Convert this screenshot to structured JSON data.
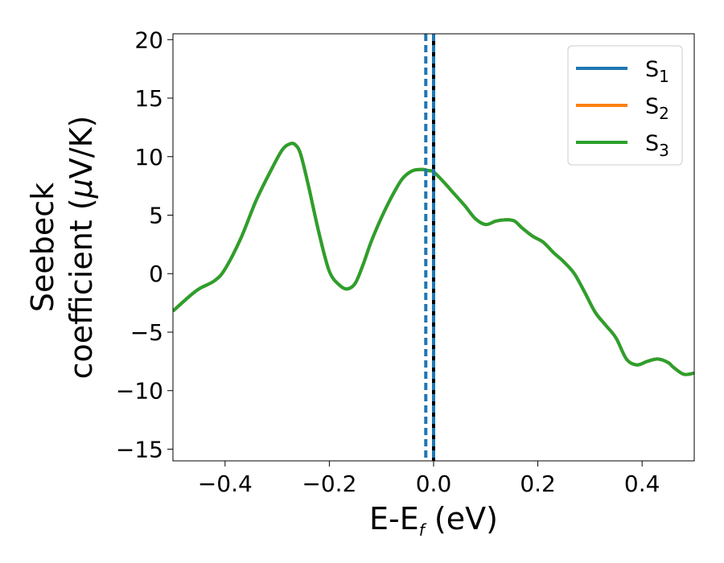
{
  "chart_data": {
    "type": "line",
    "xlabel": "E-E",
    "xlabel_sub": "f",
    "xlabel_unit": " (eV)",
    "ylabel_line1": "Seebeck",
    "ylabel_line2": "coefficient  (",
    "ylabel_mu": "μ",
    "ylabel_unit": "V/K)",
    "xlim": [
      -0.5,
      0.5
    ],
    "ylim": [
      -16,
      20.5
    ],
    "xticks": [
      -0.4,
      -0.2,
      0.0,
      0.2,
      0.4
    ],
    "xtick_labels": [
      "−0.4",
      "−0.2",
      "0.0",
      "0.2",
      "0.4"
    ],
    "yticks": [
      -15,
      -10,
      -5,
      0,
      5,
      10,
      15,
      20
    ],
    "ytick_labels": [
      "−15",
      "−10",
      "−5",
      "0",
      "5",
      "10",
      "15",
      "20"
    ],
    "grid": false,
    "legend_position": "top-right",
    "x": [
      -0.5,
      -0.47,
      -0.45,
      -0.42,
      -0.4,
      -0.37,
      -0.34,
      -0.31,
      -0.29,
      -0.275,
      -0.265,
      -0.255,
      -0.24,
      -0.22,
      -0.2,
      -0.18,
      -0.165,
      -0.15,
      -0.135,
      -0.12,
      -0.1,
      -0.08,
      -0.06,
      -0.04,
      -0.02,
      -0.01,
      0.0,
      0.02,
      0.04,
      0.06,
      0.08,
      0.1,
      0.12,
      0.14,
      0.155,
      0.17,
      0.19,
      0.21,
      0.23,
      0.25,
      0.27,
      0.29,
      0.31,
      0.33,
      0.35,
      0.37,
      0.39,
      0.41,
      0.43,
      0.45,
      0.46,
      0.48,
      0.5
    ],
    "series": [
      {
        "name": "S",
        "sub": "1",
        "color": "#1f77b4",
        "values": [
          -3.2,
          -2.0,
          -1.3,
          -0.6,
          0.4,
          3.0,
          6.3,
          9.0,
          10.6,
          11.1,
          11.0,
          10.2,
          7.5,
          3.5,
          0.2,
          -1.0,
          -1.3,
          -0.8,
          0.8,
          2.7,
          4.8,
          6.6,
          8.1,
          8.8,
          8.9,
          8.8,
          8.7,
          7.8,
          6.8,
          5.8,
          4.7,
          4.2,
          4.5,
          4.6,
          4.5,
          3.9,
          3.2,
          2.7,
          1.8,
          1.0,
          0.0,
          -1.6,
          -3.3,
          -4.4,
          -5.5,
          -7.3,
          -7.8,
          -7.5,
          -7.3,
          -7.6,
          -8.0,
          -8.6,
          -8.5
        ]
      },
      {
        "name": "S",
        "sub": "2",
        "color": "#ff7f0e",
        "values": [
          -3.2,
          -2.0,
          -1.3,
          -0.6,
          0.4,
          3.0,
          6.3,
          9.0,
          10.6,
          11.1,
          11.0,
          10.2,
          7.5,
          3.5,
          0.2,
          -1.0,
          -1.3,
          -0.8,
          0.8,
          2.7,
          4.8,
          6.6,
          8.1,
          8.8,
          8.9,
          8.8,
          8.7,
          7.8,
          6.8,
          5.8,
          4.7,
          4.2,
          4.5,
          4.6,
          4.5,
          3.9,
          3.2,
          2.7,
          1.8,
          1.0,
          0.0,
          -1.6,
          -3.3,
          -4.4,
          -5.5,
          -7.3,
          -7.8,
          -7.5,
          -7.3,
          -7.6,
          -8.0,
          -8.6,
          -8.5
        ]
      },
      {
        "name": "S",
        "sub": "3",
        "color": "#2ca02c",
        "values": [
          -3.2,
          -2.0,
          -1.3,
          -0.6,
          0.4,
          3.0,
          6.3,
          9.0,
          10.6,
          11.1,
          11.0,
          10.2,
          7.5,
          3.5,
          0.2,
          -1.0,
          -1.3,
          -0.8,
          0.8,
          2.7,
          4.8,
          6.6,
          8.1,
          8.8,
          8.9,
          8.8,
          8.7,
          7.8,
          6.8,
          5.8,
          4.7,
          4.2,
          4.5,
          4.6,
          4.5,
          3.9,
          3.2,
          2.7,
          1.8,
          1.0,
          0.0,
          -1.6,
          -3.3,
          -4.4,
          -5.5,
          -7.3,
          -7.8,
          -7.5,
          -7.3,
          -7.6,
          -8.0,
          -8.6,
          -8.5
        ]
      }
    ],
    "vertical_lines": [
      {
        "x": 0.0,
        "color": "#000000",
        "style": "solid"
      },
      {
        "x": 0.0,
        "color": "#1f77b4",
        "style": "dashed"
      },
      {
        "x": -0.015,
        "color": "#1f77b4",
        "style": "dashed"
      }
    ]
  }
}
